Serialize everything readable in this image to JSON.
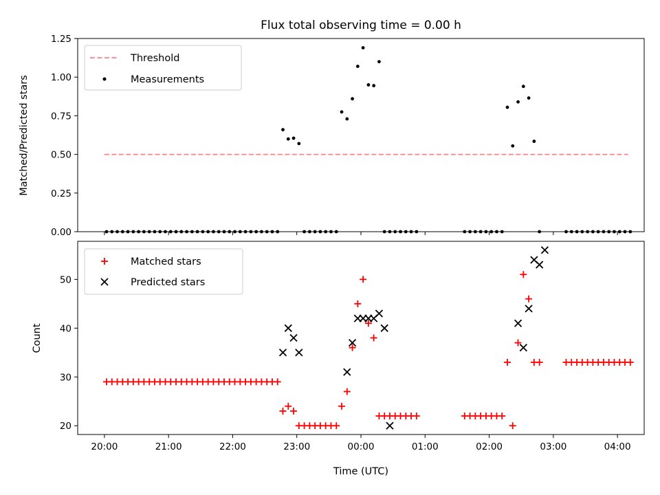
{
  "chart_data": [
    {
      "type": "scatter",
      "title": "Flux total observing time = 0.00 h",
      "xlabel": "",
      "ylabel": "Matched/Predicted stars",
      "ylim": [
        0,
        1.25
      ],
      "yticks": [
        "0.00",
        "0.25",
        "0.50",
        "0.75",
        "1.00",
        "1.25"
      ],
      "legend": {
        "position": "upper-left",
        "entries": [
          "Threshold",
          "Measurements"
        ]
      },
      "threshold": {
        "name": "Threshold",
        "value": 0.5,
        "x_range": [
          "20:00",
          "04:10"
        ],
        "color": "#ff8080"
      },
      "series": [
        {
          "name": "Measurements",
          "color": "#000000",
          "x": [
            "20:02",
            "20:07",
            "20:12",
            "20:17",
            "20:22",
            "20:27",
            "20:32",
            "20:37",
            "20:42",
            "20:47",
            "20:52",
            "20:57",
            "21:02",
            "21:07",
            "21:12",
            "21:17",
            "21:22",
            "21:27",
            "21:32",
            "21:37",
            "21:42",
            "21:47",
            "21:52",
            "21:57",
            "22:02",
            "22:07",
            "22:12",
            "22:17",
            "22:22",
            "22:27",
            "22:32",
            "22:37",
            "22:42",
            "22:47",
            "22:52",
            "22:57",
            "23:02",
            "23:07",
            "23:12",
            "23:17",
            "23:22",
            "23:27",
            "23:32",
            "23:37",
            "23:42",
            "23:47",
            "23:52",
            "23:57",
            "00:02",
            "00:07",
            "00:12",
            "00:17",
            "00:22",
            "00:27",
            "00:32",
            "00:37",
            "00:42",
            "00:47",
            "00:52",
            "01:37",
            "01:42",
            "01:47",
            "01:52",
            "01:57",
            "02:02",
            "02:07",
            "02:12",
            "02:17",
            "02:22",
            "02:27",
            "02:32",
            "02:37",
            "02:42",
            "02:47",
            "03:12",
            "03:17",
            "03:22",
            "03:27",
            "03:32",
            "03:37",
            "03:42",
            "03:47",
            "03:52",
            "03:57",
            "04:02",
            "04:07",
            "04:12"
          ],
          "y": [
            0,
            0,
            0,
            0,
            0,
            0,
            0,
            0,
            0,
            0,
            0,
            0,
            0,
            0,
            0,
            0,
            0,
            0,
            0,
            0,
            0,
            0,
            0,
            0,
            0,
            0,
            0,
            0,
            0,
            0,
            0,
            0,
            0,
            0.66,
            0.6,
            0.605,
            0.57,
            0,
            0,
            0,
            0,
            0,
            0,
            0,
            0.775,
            0.73,
            0.86,
            1.07,
            1.19,
            0.95,
            0.945,
            1.1,
            0,
            0,
            0,
            0,
            0,
            0,
            0,
            0,
            0,
            0,
            0,
            0,
            0,
            0,
            0,
            0.805,
            0.555,
            0.84,
            0.94,
            0.865,
            0.585,
            0,
            0,
            0,
            0,
            0,
            0,
            0,
            0,
            0,
            0,
            0,
            0,
            0,
            0
          ]
        }
      ]
    },
    {
      "type": "scatter",
      "title": "",
      "xlabel": "Time (UTC)",
      "ylabel": "Count",
      "ylim": [
        18.2,
        57.8
      ],
      "yticks": [
        "20",
        "30",
        "40",
        "50"
      ],
      "xticks": [
        "20:00",
        "21:00",
        "22:00",
        "23:00",
        "00:00",
        "01:00",
        "02:00",
        "03:00",
        "04:00"
      ],
      "legend": {
        "position": "upper-left",
        "entries": [
          "Matched stars",
          "Predicted stars"
        ]
      },
      "series": [
        {
          "name": "Matched stars",
          "marker": "+",
          "color": "#ff0000",
          "x": [
            "20:02",
            "20:07",
            "20:12",
            "20:17",
            "20:22",
            "20:27",
            "20:32",
            "20:37",
            "20:42",
            "20:47",
            "20:52",
            "20:57",
            "21:02",
            "21:07",
            "21:12",
            "21:17",
            "21:22",
            "21:27",
            "21:32",
            "21:37",
            "21:42",
            "21:47",
            "21:52",
            "21:57",
            "22:02",
            "22:07",
            "22:12",
            "22:17",
            "22:22",
            "22:27",
            "22:32",
            "22:37",
            "22:42",
            "22:47",
            "22:52",
            "22:57",
            "23:02",
            "23:07",
            "23:12",
            "23:17",
            "23:22",
            "23:27",
            "23:32",
            "23:37",
            "23:42",
            "23:47",
            "23:52",
            "23:57",
            "00:02",
            "00:07",
            "00:12",
            "00:17",
            "00:22",
            "00:27",
            "00:32",
            "00:37",
            "00:42",
            "00:47",
            "00:52",
            "01:37",
            "01:42",
            "01:47",
            "01:52",
            "01:57",
            "02:02",
            "02:07",
            "02:12",
            "02:17",
            "02:22",
            "02:27",
            "02:32",
            "02:37",
            "02:42",
            "02:47",
            "03:12",
            "03:17",
            "03:22",
            "03:27",
            "03:32",
            "03:37",
            "03:42",
            "03:47",
            "03:52",
            "03:57",
            "04:02",
            "04:07",
            "04:12"
          ],
          "y": [
            29,
            29,
            29,
            29,
            29,
            29,
            29,
            29,
            29,
            29,
            29,
            29,
            29,
            29,
            29,
            29,
            29,
            29,
            29,
            29,
            29,
            29,
            29,
            29,
            29,
            29,
            29,
            29,
            29,
            29,
            29,
            29,
            29,
            23,
            24,
            23,
            20,
            20,
            20,
            20,
            20,
            20,
            20,
            20,
            24,
            27,
            36,
            45,
            50,
            41,
            38,
            22,
            22,
            22,
            22,
            22,
            22,
            22,
            22,
            22,
            22,
            22,
            22,
            22,
            22,
            22,
            22,
            33,
            20,
            37,
            51,
            46,
            33,
            33,
            33,
            33,
            33,
            33,
            33,
            33,
            33,
            33,
            33,
            33,
            33,
            33,
            33
          ]
        },
        {
          "name": "Predicted stars",
          "marker": "x",
          "color": "#000000",
          "x": [
            "22:47",
            "22:52",
            "22:57",
            "23:02",
            "23:47",
            "23:52",
            "23:57",
            "00:02",
            "00:07",
            "00:12",
            "00:17",
            "00:22",
            "00:27",
            "02:27",
            "02:32",
            "02:37",
            "02:42",
            "02:47",
            "02:52"
          ],
          "y": [
            35,
            40,
            38,
            35,
            31,
            37,
            42,
            42,
            42,
            42,
            43,
            40,
            20,
            41,
            36,
            44,
            54,
            53,
            56
          ]
        }
      ]
    }
  ]
}
